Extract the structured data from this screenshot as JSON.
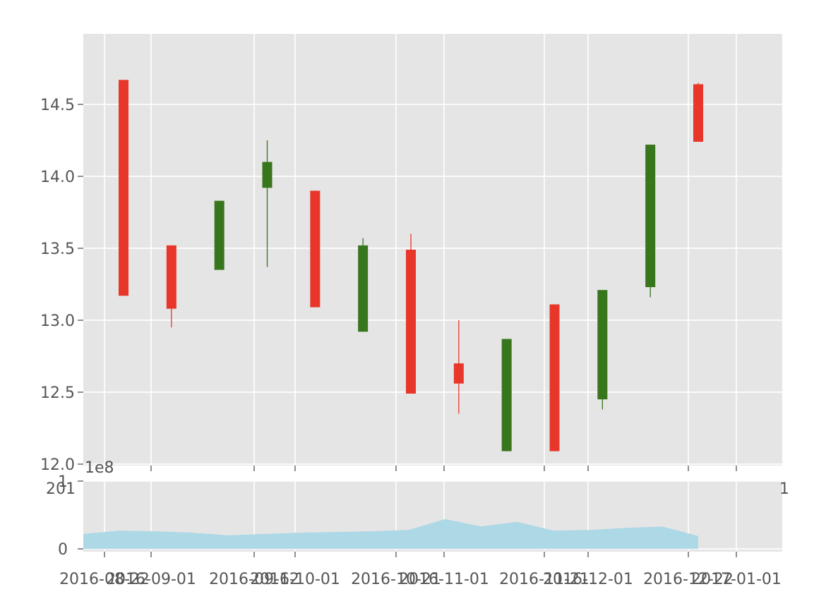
{
  "chart_data": [
    {
      "type": "candlestick",
      "y_multiplier_label": "1e8",
      "ylim": [
        11.99,
        14.99
      ],
      "yticks": [
        "12.0",
        "12.5",
        "13.0",
        "13.5",
        "14.0",
        "14.5"
      ],
      "ytick_values": [
        12.0,
        12.5,
        13.0,
        13.5,
        14.0,
        14.5
      ],
      "grid": true,
      "up_color": "#38761d",
      "down_color": "#e8372a",
      "candles": [
        {
          "open": 14.67,
          "close": 13.17,
          "high": 14.67,
          "low": 13.17
        },
        {
          "open": 13.52,
          "close": 13.08,
          "high": 13.52,
          "low": 12.95
        },
        {
          "open": 13.35,
          "close": 13.83,
          "high": 13.83,
          "low": 13.35
        },
        {
          "open": 13.92,
          "close": 14.1,
          "high": 14.25,
          "low": 13.37
        },
        {
          "open": 13.9,
          "close": 13.09,
          "high": 13.9,
          "low": 13.09
        },
        {
          "open": 12.92,
          "close": 13.52,
          "high": 13.57,
          "low": 12.92
        },
        {
          "open": 13.49,
          "close": 12.49,
          "high": 13.6,
          "low": 12.49
        },
        {
          "open": 12.7,
          "close": 12.56,
          "high": 13.0,
          "low": 12.35
        },
        {
          "open": 12.09,
          "close": 12.87,
          "high": 12.87,
          "low": 12.09
        },
        {
          "open": 13.11,
          "close": 12.09,
          "high": 13.11,
          "low": 12.09
        },
        {
          "open": 12.45,
          "close": 13.21,
          "high": 13.21,
          "low": 12.38
        },
        {
          "open": 13.23,
          "close": 14.22,
          "high": 14.22,
          "low": 13.16
        },
        {
          "open": 14.64,
          "close": 14.24,
          "high": 14.65,
          "low": 14.24
        }
      ]
    },
    {
      "type": "area",
      "y_multiplier_label": "1e8",
      "ylim": [
        -0.04,
        1.0
      ],
      "yticks": [
        "0",
        "1"
      ],
      "ytick_values": [
        0,
        1
      ],
      "grid": true,
      "color": "#add8e6",
      "values": [
        0.22,
        0.27,
        0.26,
        0.24,
        0.2,
        0.22,
        0.24,
        0.25,
        0.26,
        0.28,
        0.44,
        0.33,
        0.4,
        0.27,
        0.28,
        0.31,
        0.33,
        0.19
      ],
      "xtick_labels": [
        "2016-08-22",
        "2016-09-01",
        "2016-09-12",
        "2016-10-01",
        "2016-10-21",
        "2016-11-01",
        "2016-11-21",
        "2016-12-01",
        "2016-12-22",
        "2017-01-01"
      ],
      "top_axis_labels": [
        "201",
        "1"
      ]
    }
  ]
}
